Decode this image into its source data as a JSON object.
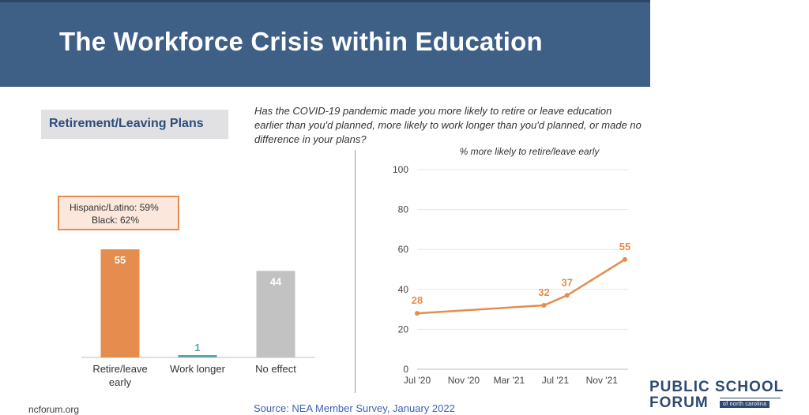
{
  "slide": {
    "title": "The Workforce Crisis within Education",
    "section_label": "Retirement/Leaving Plans",
    "question": "Has the COVID-19 pandemic made you more likely to retire or leave education earlier than you'd planned, more likely to work longer than you'd planned, or made no difference in your plans?",
    "callout_line1": "Hispanic/Latino: 59%",
    "callout_line2": "Black: 62%",
    "footer_left": "ncforum.org",
    "footer_source": "Source: NEA Member Survey, January 2022"
  },
  "logo": {
    "line1": "PUBLIC SCHOOL",
    "line2": "FORUM",
    "subtitle": "of north carolina"
  },
  "colors": {
    "title_bar": "#3e5f86",
    "orange": "#e48d4e",
    "teal": "#5fa3ab",
    "gray_bar": "#c2c2c2",
    "navy": "#2d4a73"
  },
  "chart_data": [
    {
      "type": "bar",
      "title": "",
      "categories": [
        "Retire/leave early",
        "Work longer",
        "No effect"
      ],
      "category_lines": [
        [
          "Retire/leave",
          "early"
        ],
        [
          "Work longer"
        ],
        [
          "No effect"
        ]
      ],
      "values": [
        55,
        1,
        44
      ],
      "value_labels": [
        "55",
        "1",
        "44"
      ],
      "bar_colors": [
        "#e48d4e",
        "#5fa3ab",
        "#c2c2c2"
      ],
      "ylim": [
        0,
        60
      ]
    },
    {
      "type": "line",
      "title": "% more likely to retire/leave early",
      "x": [
        "Jul '20",
        "Jun '21",
        "Aug '21",
        "Jan '22"
      ],
      "values": [
        28,
        32,
        37,
        55
      ],
      "value_labels": [
        "28",
        "32",
        "37",
        "55"
      ],
      "x_ticks": [
        "Jul '20",
        "Nov '20",
        "Mar '21",
        "Jul '21",
        "Nov '21"
      ],
      "y_ticks": [
        "0",
        "20",
        "40",
        "60",
        "80",
        "100"
      ],
      "ylim": [
        0,
        100
      ],
      "grid": true
    }
  ]
}
